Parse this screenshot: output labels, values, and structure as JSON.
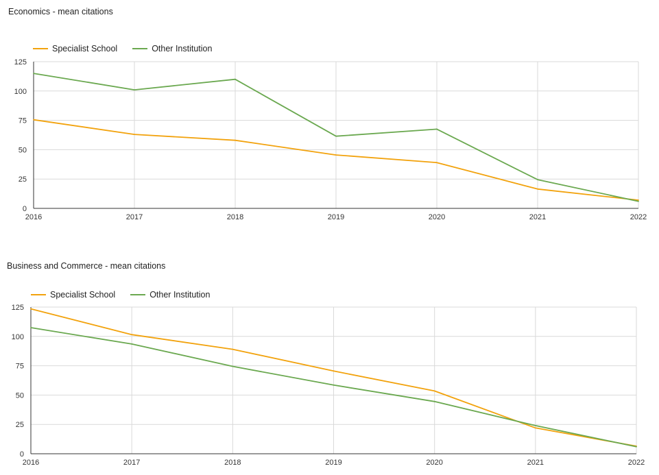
{
  "chart_data": [
    {
      "type": "line",
      "title": "Economics - mean citations",
      "x": [
        "2016",
        "2017",
        "2018",
        "2019",
        "2020",
        "2021",
        "2022"
      ],
      "ylim": [
        0,
        125
      ],
      "yticks": [
        0,
        25,
        50,
        75,
        100,
        125
      ],
      "grid": true,
      "legend_position": "top-left",
      "series": [
        {
          "name": "Specialist School",
          "color": "#F2A20C",
          "values": [
            75.5,
            63,
            58,
            45.5,
            39,
            16.5,
            7
          ]
        },
        {
          "name": "Other Institution",
          "color": "#6AA84F",
          "values": [
            115,
            101,
            110,
            61.5,
            67.5,
            24.5,
            6
          ]
        }
      ]
    },
    {
      "type": "line",
      "title": "Business and Commerce - mean citations",
      "x": [
        "2016",
        "2017",
        "2018",
        "2019",
        "2020",
        "2021",
        "2022"
      ],
      "ylim": [
        0,
        125
      ],
      "yticks": [
        0,
        25,
        50,
        75,
        100,
        125
      ],
      "grid": true,
      "legend_position": "top-left",
      "series": [
        {
          "name": "Specialist School",
          "color": "#F2A20C",
          "values": [
            123.5,
            101.5,
            89,
            70.5,
            53.5,
            22,
            6.5
          ]
        },
        {
          "name": "Other Institution",
          "color": "#6AA84F",
          "values": [
            107.5,
            93.5,
            74.5,
            58.5,
            44.5,
            24,
            6
          ]
        }
      ]
    }
  ]
}
